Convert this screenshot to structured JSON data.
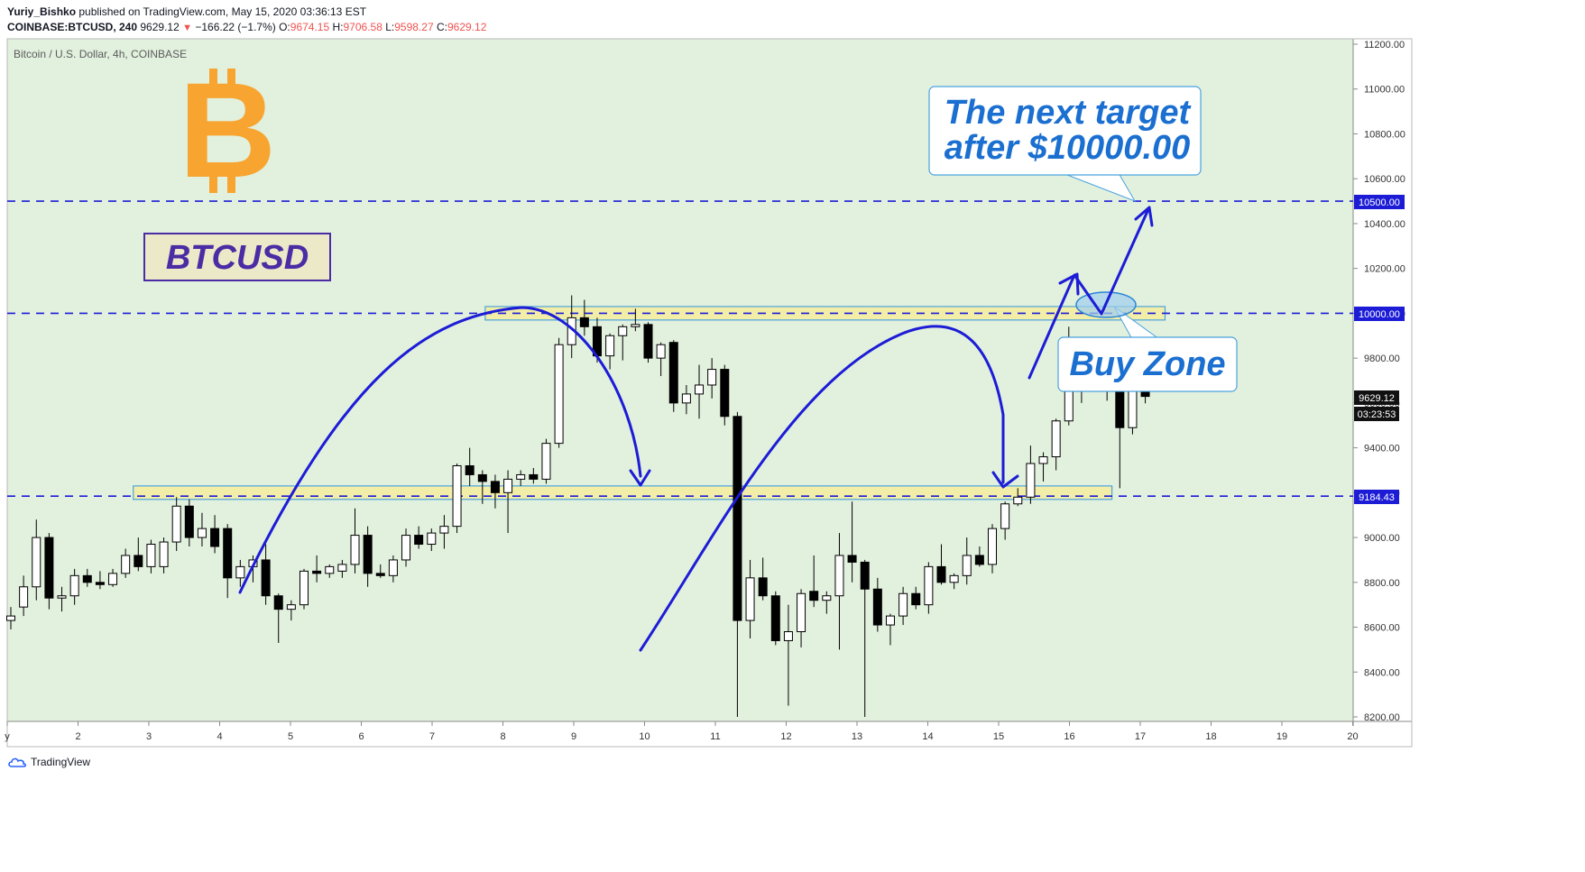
{
  "header": {
    "author": "Yuriy_Bishko",
    "published_text": "published on TradingView.com, May 15, 2020 03:36:13 EST",
    "symbol": "COINBASE:BTCUSD, 240",
    "last": "9629.12",
    "change": "−166.22 (−1.7%)",
    "o_label": "O:",
    "o": "9674.15",
    "h_label": "H:",
    "h": "9706.58",
    "l_label": "L:",
    "l": "9598.27",
    "c_label": "C:",
    "c": "9629.12"
  },
  "footer": {
    "brand": "TradingView"
  },
  "colors": {
    "background": "#e2f0de",
    "line": "#1c1cd6",
    "callout_text": "#1a6fd0",
    "zone_fill": "#f5ec9e",
    "zone_border": "#4aa3df",
    "bitcoin_orange": "#f7a530",
    "btcusd_text": "#4b2ca4"
  },
  "chart_data": {
    "type": "candlestick",
    "title": "Bitcoin / U.S. Dollar, 4h, COINBASE",
    "ylim": [
      8200,
      11200
    ],
    "y_ticks": [
      "8200.00",
      "8400.00",
      "8600.00",
      "8800.00",
      "9000.00",
      "9200.00",
      "9400.00",
      "9600.00",
      "9800.00",
      "10000.00",
      "10200.00",
      "10400.00",
      "10600.00",
      "10800.00",
      "11000.00",
      "11200.00"
    ],
    "x_ticks": [
      "y",
      "2",
      "3",
      "4",
      "5",
      "6",
      "7",
      "8",
      "9",
      "10",
      "11",
      "12",
      "13",
      "14",
      "15",
      "16",
      "17",
      "18",
      "19",
      "20"
    ],
    "price_labels": {
      "last_price": "9629.12",
      "countdown": "03:23:53",
      "level_10500": "10500.00",
      "level_10000": "10000.00",
      "level_9184": "9184.43"
    },
    "levels": [
      10500,
      10000,
      9184.43
    ],
    "zones": [
      [
        9970,
        10030
      ],
      [
        9170,
        9230
      ]
    ],
    "annotations": {
      "btcusd": "BTCUSD",
      "bitcoin_symbol": "B",
      "target_line1": "The next target",
      "target_line2": "after $10000.00",
      "buy_zone": "Buy Zone"
    },
    "candles": [
      {
        "x": 0.0,
        "o": 8630,
        "h": 8690,
        "l": 8590,
        "c": 8650
      },
      {
        "x": 0.18,
        "o": 8690,
        "h": 8830,
        "l": 8650,
        "c": 8780
      },
      {
        "x": 0.36,
        "o": 8780,
        "h": 9080,
        "l": 8720,
        "c": 9000
      },
      {
        "x": 0.54,
        "o": 9000,
        "h": 9020,
        "l": 8680,
        "c": 8730
      },
      {
        "x": 0.72,
        "o": 8730,
        "h": 8780,
        "l": 8670,
        "c": 8740
      },
      {
        "x": 0.9,
        "o": 8740,
        "h": 8860,
        "l": 8700,
        "c": 8830
      },
      {
        "x": 1.08,
        "o": 8830,
        "h": 8860,
        "l": 8780,
        "c": 8800
      },
      {
        "x": 1.26,
        "o": 8800,
        "h": 8850,
        "l": 8770,
        "c": 8790
      },
      {
        "x": 1.44,
        "o": 8790,
        "h": 8860,
        "l": 8780,
        "c": 8840
      },
      {
        "x": 1.62,
        "o": 8840,
        "h": 8950,
        "l": 8820,
        "c": 8920
      },
      {
        "x": 1.8,
        "o": 8920,
        "h": 9000,
        "l": 8850,
        "c": 8870
      },
      {
        "x": 1.98,
        "o": 8870,
        "h": 8990,
        "l": 8840,
        "c": 8970
      },
      {
        "x": 2.16,
        "o": 8870,
        "h": 9000,
        "l": 8840,
        "c": 8980
      },
      {
        "x": 2.34,
        "o": 8980,
        "h": 9180,
        "l": 8940,
        "c": 9140
      },
      {
        "x": 2.52,
        "o": 9140,
        "h": 9170,
        "l": 8960,
        "c": 9000
      },
      {
        "x": 2.7,
        "o": 9000,
        "h": 9110,
        "l": 8960,
        "c": 9040
      },
      {
        "x": 2.88,
        "o": 9040,
        "h": 9100,
        "l": 8930,
        "c": 8960
      },
      {
        "x": 3.06,
        "o": 9040,
        "h": 9060,
        "l": 8730,
        "c": 8820
      },
      {
        "x": 3.24,
        "o": 8820,
        "h": 8900,
        "l": 8780,
        "c": 8870
      },
      {
        "x": 3.42,
        "o": 8870,
        "h": 8920,
        "l": 8800,
        "c": 8900
      },
      {
        "x": 3.6,
        "o": 8900,
        "h": 8970,
        "l": 8700,
        "c": 8740
      },
      {
        "x": 3.78,
        "o": 8740,
        "h": 8750,
        "l": 8530,
        "c": 8680
      },
      {
        "x": 3.96,
        "o": 8680,
        "h": 8720,
        "l": 8630,
        "c": 8700
      },
      {
        "x": 4.14,
        "o": 8700,
        "h": 8860,
        "l": 8680,
        "c": 8850
      },
      {
        "x": 4.32,
        "o": 8850,
        "h": 8920,
        "l": 8800,
        "c": 8840
      },
      {
        "x": 4.5,
        "o": 8840,
        "h": 8880,
        "l": 8820,
        "c": 8870
      },
      {
        "x": 4.68,
        "o": 8850,
        "h": 8900,
        "l": 8820,
        "c": 8880
      },
      {
        "x": 4.86,
        "o": 8880,
        "h": 9130,
        "l": 8840,
        "c": 9010
      },
      {
        "x": 5.04,
        "o": 9010,
        "h": 9050,
        "l": 8780,
        "c": 8840
      },
      {
        "x": 5.22,
        "o": 8840,
        "h": 8880,
        "l": 8820,
        "c": 8830
      },
      {
        "x": 5.4,
        "o": 8830,
        "h": 8920,
        "l": 8800,
        "c": 8900
      },
      {
        "x": 5.58,
        "o": 8900,
        "h": 9040,
        "l": 8870,
        "c": 9010
      },
      {
        "x": 5.76,
        "o": 9010,
        "h": 9050,
        "l": 8950,
        "c": 8970
      },
      {
        "x": 5.94,
        "o": 8970,
        "h": 9040,
        "l": 8940,
        "c": 9020
      },
      {
        "x": 6.12,
        "o": 9020,
        "h": 9100,
        "l": 8950,
        "c": 9050
      },
      {
        "x": 6.3,
        "o": 9050,
        "h": 9330,
        "l": 9020,
        "c": 9320
      },
      {
        "x": 6.48,
        "o": 9320,
        "h": 9400,
        "l": 9230,
        "c": 9280
      },
      {
        "x": 6.66,
        "o": 9280,
        "h": 9300,
        "l": 9150,
        "c": 9250
      },
      {
        "x": 6.84,
        "o": 9250,
        "h": 9280,
        "l": 9130,
        "c": 9200
      },
      {
        "x": 7.02,
        "o": 9200,
        "h": 9300,
        "l": 9020,
        "c": 9260
      },
      {
        "x": 7.2,
        "o": 9260,
        "h": 9300,
        "l": 9230,
        "c": 9280
      },
      {
        "x": 7.38,
        "o": 9280,
        "h": 9310,
        "l": 9240,
        "c": 9260
      },
      {
        "x": 7.56,
        "o": 9260,
        "h": 9440,
        "l": 9240,
        "c": 9420
      },
      {
        "x": 7.74,
        "o": 9420,
        "h": 9890,
        "l": 9400,
        "c": 9860
      },
      {
        "x": 7.92,
        "o": 9860,
        "h": 10080,
        "l": 9800,
        "c": 9980
      },
      {
        "x": 8.1,
        "o": 9980,
        "h": 10060,
        "l": 9900,
        "c": 9940
      },
      {
        "x": 8.28,
        "o": 9940,
        "h": 9980,
        "l": 9780,
        "c": 9810
      },
      {
        "x": 8.46,
        "o": 9810,
        "h": 9910,
        "l": 9750,
        "c": 9900
      },
      {
        "x": 8.64,
        "o": 9900,
        "h": 9950,
        "l": 9790,
        "c": 9940
      },
      {
        "x": 8.82,
        "o": 9940,
        "h": 10020,
        "l": 9920,
        "c": 9950
      },
      {
        "x": 9.0,
        "o": 9950,
        "h": 9960,
        "l": 9780,
        "c": 9800
      },
      {
        "x": 9.18,
        "o": 9800,
        "h": 9870,
        "l": 9720,
        "c": 9860
      },
      {
        "x": 9.36,
        "o": 9870,
        "h": 9880,
        "l": 9560,
        "c": 9600
      },
      {
        "x": 9.54,
        "o": 9600,
        "h": 9680,
        "l": 9550,
        "c": 9640
      },
      {
        "x": 9.72,
        "o": 9640,
        "h": 9770,
        "l": 9530,
        "c": 9680
      },
      {
        "x": 9.9,
        "o": 9680,
        "h": 9800,
        "l": 9620,
        "c": 9750
      },
      {
        "x": 10.08,
        "o": 9750,
        "h": 9770,
        "l": 9500,
        "c": 9540
      },
      {
        "x": 10.26,
        "o": 9540,
        "h": 9560,
        "l": 8200,
        "c": 8630
      },
      {
        "x": 10.44,
        "o": 8630,
        "h": 8900,
        "l": 8550,
        "c": 8820
      },
      {
        "x": 10.62,
        "o": 8820,
        "h": 8910,
        "l": 8720,
        "c": 8740
      },
      {
        "x": 10.8,
        "o": 8740,
        "h": 8760,
        "l": 8520,
        "c": 8540
      },
      {
        "x": 10.98,
        "o": 8540,
        "h": 8700,
        "l": 8250,
        "c": 8580
      },
      {
        "x": 11.16,
        "o": 8580,
        "h": 8770,
        "l": 8510,
        "c": 8750
      },
      {
        "x": 11.34,
        "o": 8760,
        "h": 8920,
        "l": 8690,
        "c": 8720
      },
      {
        "x": 11.52,
        "o": 8720,
        "h": 8760,
        "l": 8660,
        "c": 8740
      },
      {
        "x": 11.7,
        "o": 8740,
        "h": 9020,
        "l": 8500,
        "c": 8920
      },
      {
        "x": 11.88,
        "o": 8920,
        "h": 9160,
        "l": 8800,
        "c": 8890
      },
      {
        "x": 12.06,
        "o": 8890,
        "h": 8900,
        "l": 8200,
        "c": 8770
      },
      {
        "x": 12.24,
        "o": 8770,
        "h": 8820,
        "l": 8580,
        "c": 8610
      },
      {
        "x": 12.42,
        "o": 8610,
        "h": 8660,
        "l": 8520,
        "c": 8650
      },
      {
        "x": 12.6,
        "o": 8650,
        "h": 8780,
        "l": 8610,
        "c": 8750
      },
      {
        "x": 12.78,
        "o": 8750,
        "h": 8780,
        "l": 8680,
        "c": 8700
      },
      {
        "x": 12.96,
        "o": 8700,
        "h": 8890,
        "l": 8660,
        "c": 8870
      },
      {
        "x": 13.14,
        "o": 8870,
        "h": 8970,
        "l": 8790,
        "c": 8800
      },
      {
        "x": 13.32,
        "o": 8800,
        "h": 8840,
        "l": 8770,
        "c": 8830
      },
      {
        "x": 13.5,
        "o": 8830,
        "h": 9000,
        "l": 8790,
        "c": 8920
      },
      {
        "x": 13.68,
        "o": 8920,
        "h": 8960,
        "l": 8870,
        "c": 8880
      },
      {
        "x": 13.86,
        "o": 8880,
        "h": 9060,
        "l": 8840,
        "c": 9040
      },
      {
        "x": 14.04,
        "o": 9040,
        "h": 9160,
        "l": 8990,
        "c": 9150
      },
      {
        "x": 14.22,
        "o": 9150,
        "h": 9220,
        "l": 9140,
        "c": 9180
      },
      {
        "x": 14.4,
        "o": 9180,
        "h": 9410,
        "l": 9150,
        "c": 9330
      },
      {
        "x": 14.58,
        "o": 9330,
        "h": 9380,
        "l": 9250,
        "c": 9360
      },
      {
        "x": 14.76,
        "o": 9360,
        "h": 9530,
        "l": 9300,
        "c": 9520
      },
      {
        "x": 14.94,
        "o": 9520,
        "h": 9940,
        "l": 9500,
        "c": 9680
      },
      {
        "x": 15.12,
        "o": 9680,
        "h": 9760,
        "l": 9600,
        "c": 9740
      },
      {
        "x": 15.3,
        "o": 9740,
        "h": 9770,
        "l": 9660,
        "c": 9680
      },
      {
        "x": 15.48,
        "o": 9680,
        "h": 9810,
        "l": 9610,
        "c": 9790
      },
      {
        "x": 15.66,
        "o": 9790,
        "h": 9850,
        "l": 9220,
        "c": 9490
      },
      {
        "x": 15.84,
        "o": 9490,
        "h": 9720,
        "l": 9460,
        "c": 9680
      },
      {
        "x": 16.02,
        "o": 9674.15,
        "h": 9706.58,
        "l": 9598.27,
        "c": 9629.12
      }
    ]
  }
}
